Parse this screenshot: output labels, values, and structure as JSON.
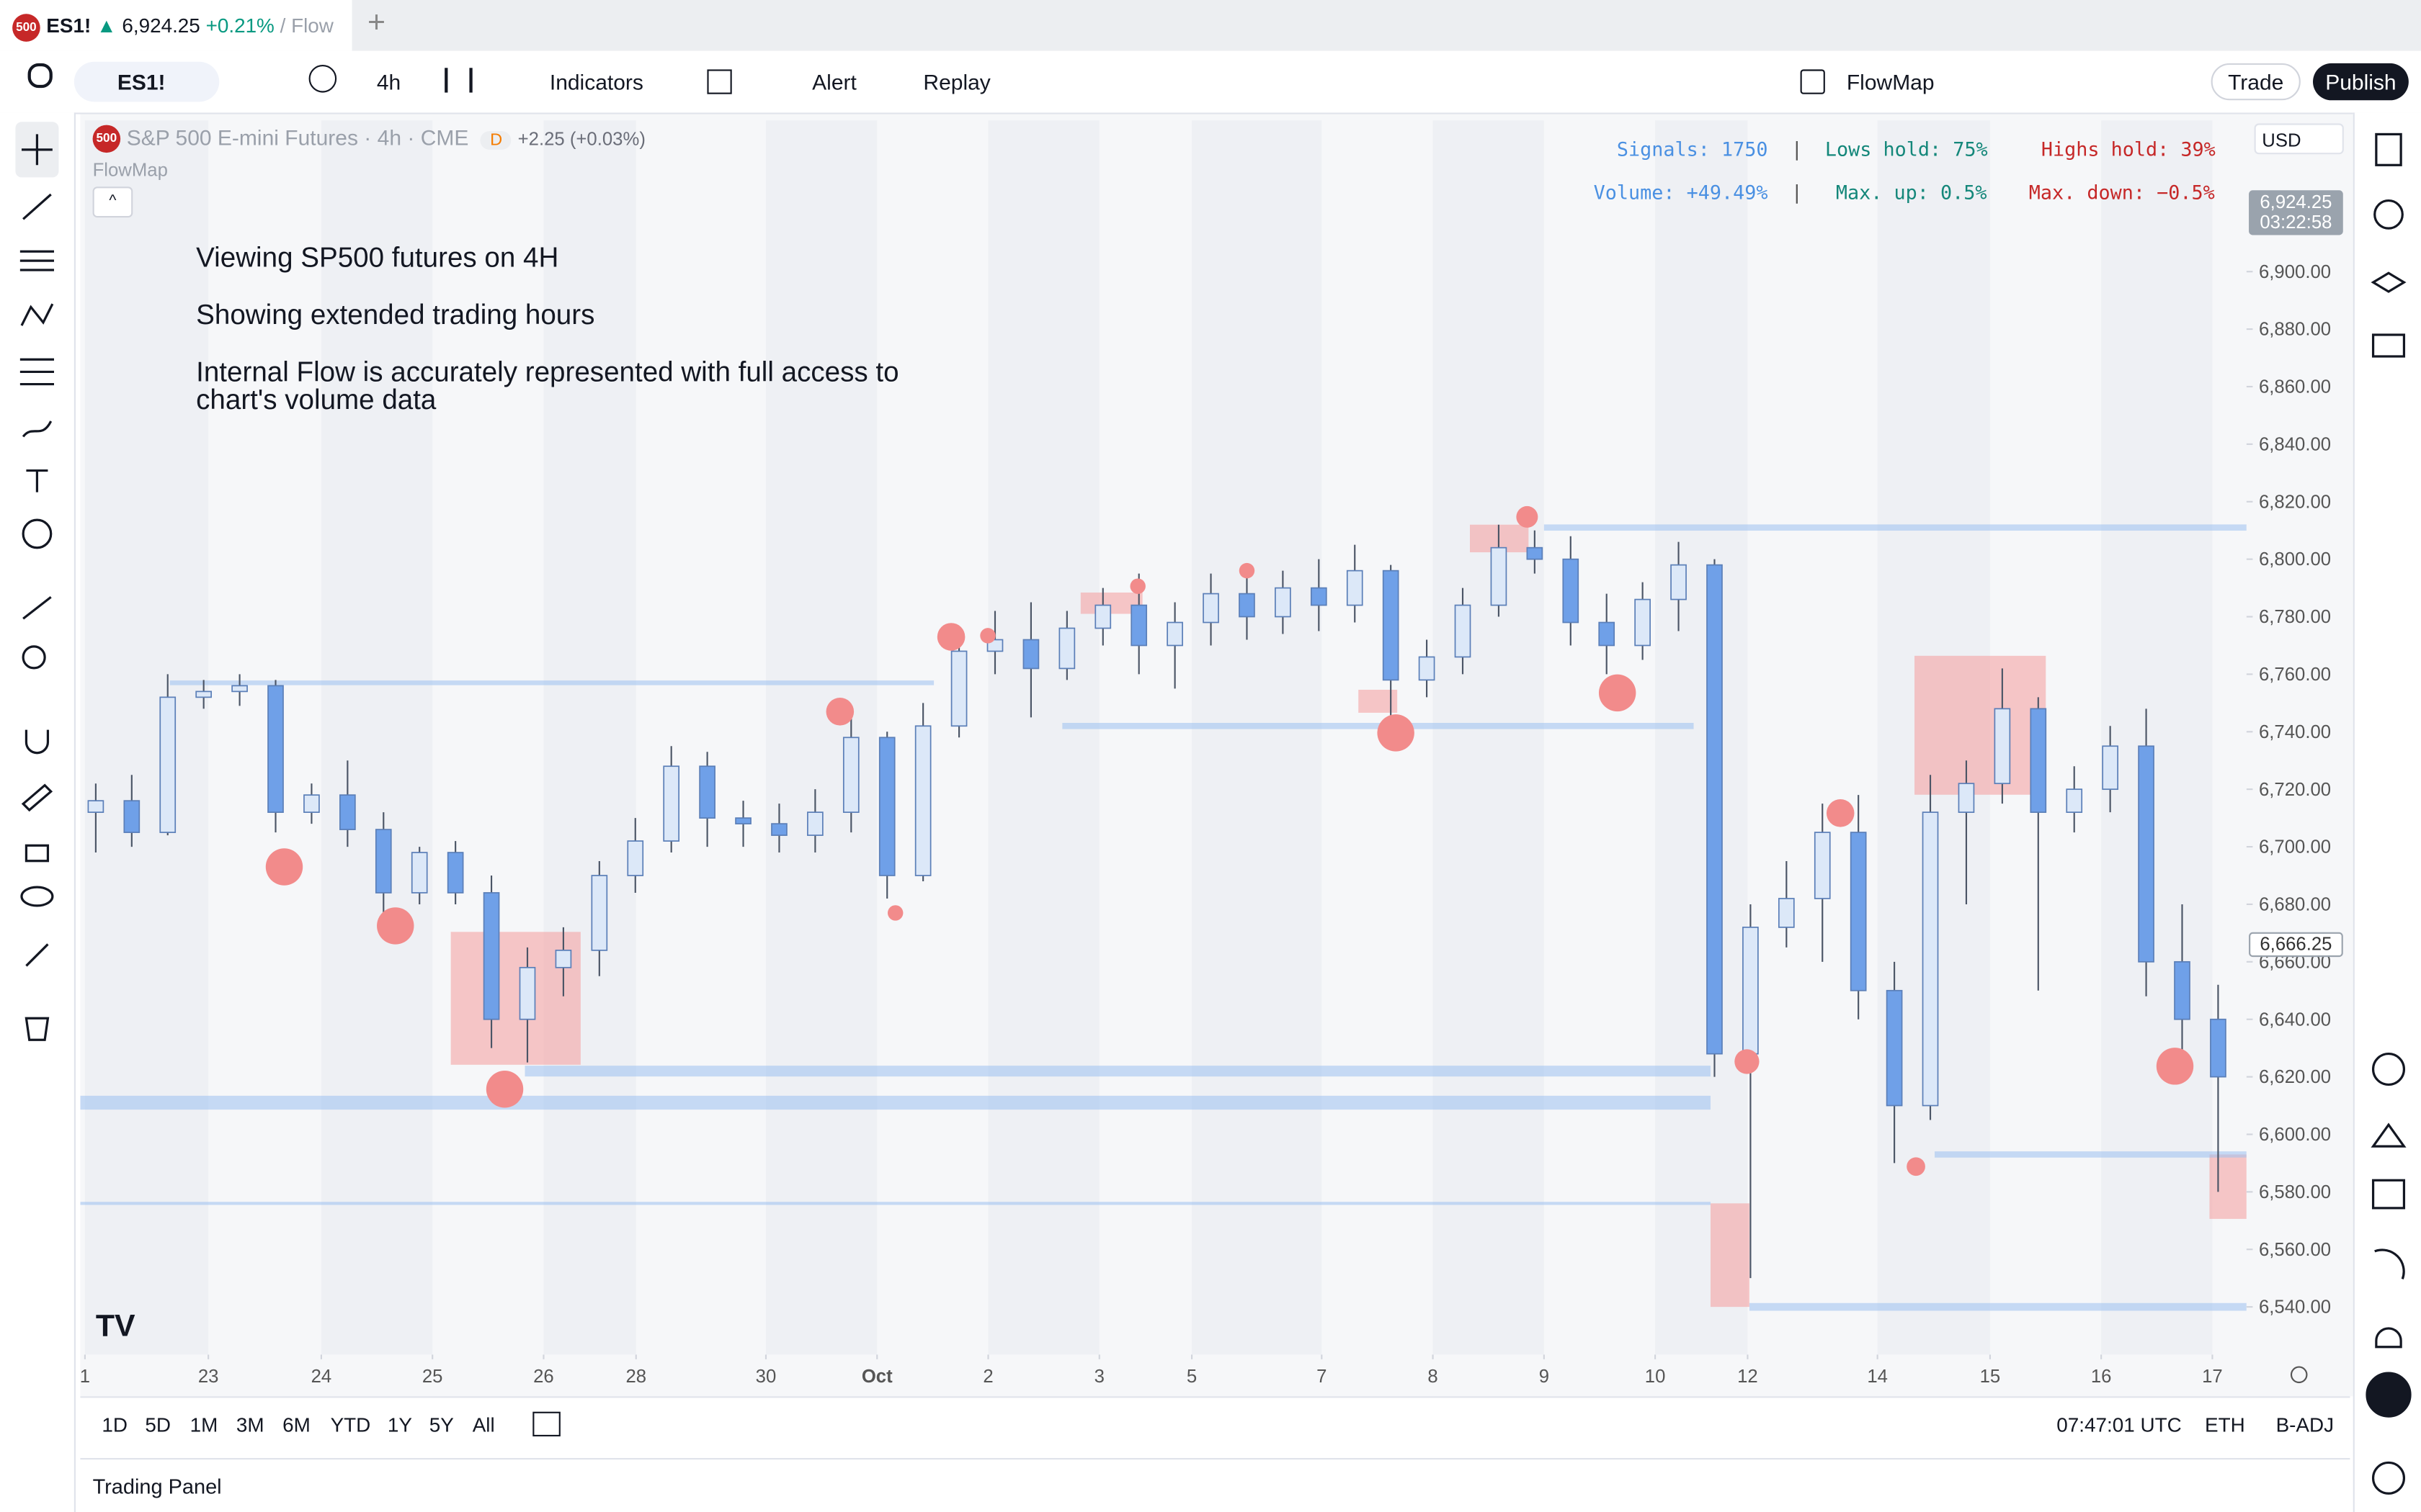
{
  "tab": {
    "badge": "500",
    "symbol": "ES1!",
    "arrow": "▲",
    "price": "6,924.25",
    "change": "+0.21%",
    "rest": "/ Flow",
    "new": "+"
  },
  "toolbar": {
    "symbol": "ES1!",
    "interval": "4h",
    "indicators": "Indicators",
    "alert": "Alert",
    "replay": "Replay",
    "layout": "FlowMap",
    "trade": "Trade",
    "publish": "Publish"
  },
  "legend": {
    "badge": "500",
    "symbol": "S&P 500 E-mini Futures",
    "interval": "· 4h ·",
    "exchange": "CME",
    "marker": "D",
    "change": "+2.25 (+0.03%)",
    "indicator": "FlowMap"
  },
  "notes": [
    "Viewing SP500 futures on 4H",
    "Showing extended trading hours",
    "Internal Flow is accurately represented with full access to chart's volume data"
  ],
  "stats": {
    "signals": "Signals: 1750",
    "lows": "Lows hold: 75%",
    "highs": "Highs hold: 39%",
    "volume": "Volume: +49.49%",
    "up": "Max. up: 0.5%",
    "down": "Max. down: −0.5%",
    "sep": "|"
  },
  "currency": "USD",
  "chart_data": {
    "type": "candlestick",
    "grid": false,
    "up_color": "#dce8f8",
    "down_color": "#6fa0e8",
    "wick_color": "#4b5566",
    "x": [
      0,
      1,
      2,
      3,
      4,
      5,
      6,
      7,
      8,
      9,
      10,
      11,
      12,
      13,
      14,
      15,
      16,
      17,
      18,
      19,
      20,
      21,
      22,
      23,
      24,
      25,
      26,
      27,
      28,
      29,
      30,
      31,
      32,
      33,
      34,
      35,
      36,
      37,
      38,
      39,
      40,
      41,
      42,
      43,
      44,
      45,
      46,
      47,
      48,
      49,
      50,
      51,
      52,
      53,
      54,
      55,
      56,
      57,
      58,
      59
    ],
    "open": [
      6712,
      6716,
      6705,
      6752,
      6754,
      6756,
      6712,
      6718,
      6706,
      6684,
      6698,
      6684,
      6640,
      6658,
      6664,
      6690,
      6702,
      6728,
      6710,
      6708,
      6704,
      6712,
      6738,
      6690,
      6742,
      6768,
      6772,
      6762,
      6776,
      6784,
      6770,
      6778,
      6788,
      6780,
      6790,
      6784,
      6796,
      6758,
      6766,
      6784,
      6804,
      6800,
      6778,
      6770,
      6786,
      6798,
      6628,
      6672,
      6682,
      6705,
      6650,
      6610,
      6712,
      6722,
      6748,
      6712,
      6720,
      6735,
      6660,
      6640
    ],
    "high": [
      6722,
      6725,
      6760,
      6758,
      6760,
      6758,
      6722,
      6730,
      6712,
      6700,
      6702,
      6690,
      6665,
      6672,
      6695,
      6710,
      6735,
      6733,
      6716,
      6715,
      6720,
      6745,
      6740,
      6750,
      6775,
      6782,
      6785,
      6782,
      6790,
      6795,
      6785,
      6795,
      6798,
      6796,
      6800,
      6805,
      6798,
      6772,
      6790,
      6812,
      6810,
      6808,
      6788,
      6792,
      6806,
      6800,
      6680,
      6695,
      6715,
      6718,
      6660,
      6725,
      6730,
      6762,
      6752,
      6728,
      6742,
      6748,
      6680,
      6652
    ],
    "low": [
      6698,
      6700,
      6704,
      6748,
      6749,
      6705,
      6708,
      6700,
      6672,
      6680,
      6680,
      6630,
      6625,
      6648,
      6655,
      6684,
      6698,
      6700,
      6700,
      6698,
      6698,
      6705,
      6682,
      6688,
      6738,
      6760,
      6745,
      6758,
      6770,
      6760,
      6755,
      6770,
      6772,
      6774,
      6775,
      6778,
      6745,
      6752,
      6760,
      6780,
      6795,
      6770,
      6760,
      6765,
      6775,
      6620,
      6550,
      6665,
      6660,
      6640,
      6590,
      6605,
      6680,
      6715,
      6650,
      6705,
      6712,
      6648,
      6628,
      6580
    ],
    "close": [
      6716,
      6705,
      6752,
      6754,
      6756,
      6712,
      6718,
      6706,
      6684,
      6698,
      6684,
      6640,
      6658,
      6664,
      6690,
      6702,
      6728,
      6710,
      6708,
      6704,
      6712,
      6738,
      6690,
      6742,
      6768,
      6772,
      6762,
      6776,
      6784,
      6770,
      6778,
      6788,
      6780,
      6790,
      6784,
      6796,
      6758,
      6766,
      6784,
      6804,
      6800,
      6778,
      6770,
      6786,
      6798,
      6628,
      6672,
      6682,
      6705,
      6650,
      6610,
      6712,
      6722,
      6748,
      6712,
      6720,
      6735,
      6660,
      6640,
      6620
    ],
    "xlim": [
      -0.43,
      59.79
    ],
    "ylim": [
      6523.4,
      6952.6
    ],
    "xticks": [
      {
        "value": -0.3,
        "label": "1"
      },
      {
        "value": 3.13,
        "label": "23"
      },
      {
        "value": 6.27,
        "label": "24"
      },
      {
        "value": 9.36,
        "label": "25"
      },
      {
        "value": 12.45,
        "label": "26"
      },
      {
        "value": 15.02,
        "label": "28"
      },
      {
        "value": 18.63,
        "label": "30"
      },
      {
        "value": 21.72,
        "label": "Oct"
      },
      {
        "value": 24.81,
        "label": "2"
      },
      {
        "value": 27.9,
        "label": "3"
      },
      {
        "value": 30.47,
        "label": "5"
      },
      {
        "value": 34.08,
        "label": "7"
      },
      {
        "value": 37.17,
        "label": "8"
      },
      {
        "value": 40.26,
        "label": "9"
      },
      {
        "value": 43.35,
        "label": "10"
      },
      {
        "value": 45.92,
        "label": "12"
      },
      {
        "value": 49.53,
        "label": "14"
      },
      {
        "value": 52.66,
        "label": "15"
      },
      {
        "value": 55.75,
        "label": "16"
      },
      {
        "value": 58.84,
        "label": "17"
      }
    ],
    "yticks": [
      {
        "value": 6540,
        "label": "6,540.00"
      },
      {
        "value": 6560,
        "label": "6,560.00"
      },
      {
        "value": 6580,
        "label": "6,580.00"
      },
      {
        "value": 6600,
        "label": "6,600.00"
      },
      {
        "value": 6620,
        "label": "6,620.00"
      },
      {
        "value": 6640,
        "label": "6,640.00"
      },
      {
        "value": 6660,
        "label": "6,660.00"
      },
      {
        "value": 6680,
        "label": "6,680.00"
      },
      {
        "value": 6700,
        "label": "6,700.00"
      },
      {
        "value": 6720,
        "label": "6,720.00"
      },
      {
        "value": 6740,
        "label": "6,740.00"
      },
      {
        "value": 6760,
        "label": "6,760.00"
      },
      {
        "value": 6780,
        "label": "6,780.00"
      },
      {
        "value": 6800,
        "label": "6,800.00"
      },
      {
        "value": 6820,
        "label": "6,820.00"
      },
      {
        "value": 6840,
        "label": "6,840.00"
      },
      {
        "value": 6860,
        "label": "6,860.00"
      },
      {
        "value": 6880,
        "label": "6,880.00"
      },
      {
        "value": 6900,
        "label": "6,900.00"
      }
    ],
    "price_labels": [
      {
        "value": 6924.25,
        "label": "6,924.25",
        "countdown": "03:22:58",
        "color": "#9aa3ad"
      },
      {
        "value": 6666.25,
        "label": "6,666.25",
        "color": "#ffffff"
      }
    ],
    "signals": {
      "color": "#f28b8b",
      "x": [
        5.24,
        8.33,
        11.37,
        20.69,
        22.23,
        23.78,
        24.8,
        28.97,
        32.0,
        36.14,
        39.79,
        42.3,
        45.9,
        48.5,
        50.6,
        57.8
      ],
      "y": [
        6693,
        6672.5,
        6615.7,
        6747,
        6677,
        6773,
        6773.4,
        6790.6,
        6796,
        6739.6,
        6814.7,
        6753.5,
        6625.3,
        6711.7,
        6588.8,
        6623.7
      ],
      "size": [
        12,
        12,
        12,
        9,
        5,
        9,
        5,
        5,
        5,
        12,
        7,
        12,
        8,
        9,
        6,
        12
      ]
    },
    "levels": [
      {
        "from": 40.26,
        "to": 59.79,
        "price": 6811,
        "width": 4
      },
      {
        "from": 11.93,
        "to": 44.89,
        "price": 6622,
        "width": 7
      },
      {
        "from": -0.43,
        "to": 44.89,
        "price": 6611,
        "width": 9
      },
      {
        "from": -0.43,
        "to": 44.89,
        "price": 6576,
        "width": 2
      },
      {
        "from": 45.97,
        "to": 59.79,
        "price": 6540,
        "width": 5
      },
      {
        "from": 26.87,
        "to": 44.42,
        "price": 6742,
        "width": 4
      },
      {
        "from": 2.06,
        "to": 23.3,
        "price": 6757,
        "width": 3
      },
      {
        "from": 51.12,
        "to": 59.79,
        "price": 6593,
        "width": 4
      }
    ],
    "zones": [
      {
        "x0": 9.87,
        "x1": 13.48,
        "low": 6624.2,
        "high": 6670.4
      },
      {
        "x0": 50.56,
        "x1": 54.21,
        "low": 6718.1,
        "high": 6766.4
      },
      {
        "x0": 44.89,
        "x1": 45.97,
        "low": 6540,
        "high": 6576
      },
      {
        "x0": 38.2,
        "x1": 39.83,
        "low": 6802.4,
        "high": 6812
      },
      {
        "x0": 58.76,
        "x1": 59.79,
        "low": 6570.6,
        "high": 6593
      },
      {
        "x0": 27.38,
        "x1": 29.1,
        "low": 6781,
        "high": 6788.4
      },
      {
        "x0": 35.1,
        "x1": 36.18,
        "low": 6746.6,
        "high": 6754.6
      }
    ]
  },
  "bottom": {
    "ranges": [
      "1D",
      "5D",
      "1M",
      "3M",
      "6M",
      "YTD",
      "1Y",
      "5Y",
      "All"
    ],
    "time": "07:47:01 UTC",
    "session": "ETH",
    "adj": "B-ADJ",
    "panel": "Trading Panel"
  }
}
